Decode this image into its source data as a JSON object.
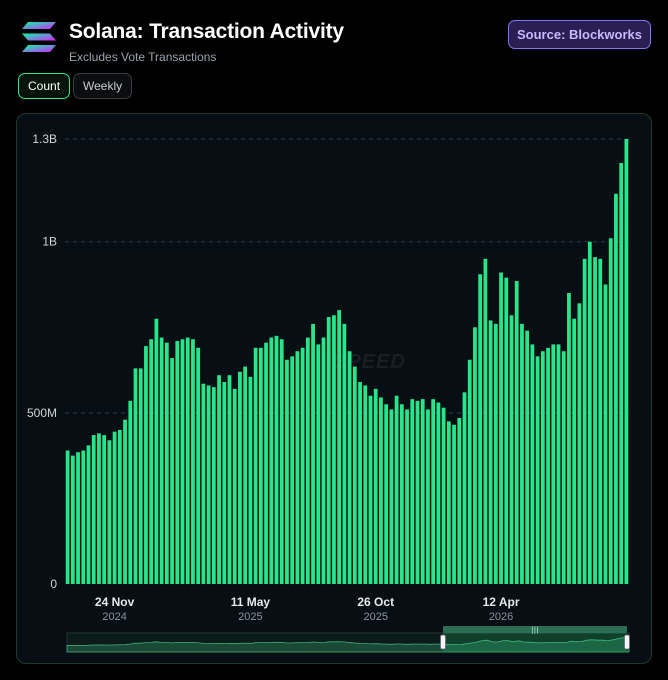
{
  "header": {
    "title": "Solana: Transaction Activity",
    "subtitle": "Excludes Vote Transactions",
    "source_label": "Source: Blockworks"
  },
  "toggles": {
    "count_label": "Count",
    "weekly_label": "Weekly",
    "selected": "Count"
  },
  "watermark": "SPEED",
  "colors": {
    "bar": "#27e68a",
    "accent": "#2ee88c",
    "source_border": "#8b73e6",
    "background": "#000000"
  },
  "chart_data": {
    "type": "bar",
    "title": "Solana: Transaction Activity",
    "subtitle": "Excludes Vote Transactions",
    "xlabel": "",
    "ylabel": "",
    "ylim": [
      0,
      1300000000
    ],
    "yticks": [
      {
        "value": 0,
        "label": "0"
      },
      {
        "value": 500000000,
        "label": "500M"
      },
      {
        "value": 1000000000,
        "label": "1B"
      },
      {
        "value": 1300000000,
        "label": "1.3B"
      }
    ],
    "xticks": [
      {
        "index": 9,
        "label": "24 Nov",
        "sublabel": "2024"
      },
      {
        "index": 35,
        "label": "11 May",
        "sublabel": "2025"
      },
      {
        "index": 59,
        "label": "26 Oct",
        "sublabel": "2025"
      },
      {
        "index": 83,
        "label": "12 Apr",
        "sublabel": "2026"
      }
    ],
    "grid": "horizontal dashed",
    "legend": "none",
    "values": [
      390000000,
      375000000,
      385000000,
      390000000,
      405000000,
      435000000,
      440000000,
      435000000,
      420000000,
      445000000,
      450000000,
      480000000,
      535000000,
      630000000,
      630000000,
      695000000,
      715000000,
      775000000,
      720000000,
      705000000,
      660000000,
      710000000,
      715000000,
      720000000,
      715000000,
      690000000,
      585000000,
      580000000,
      575000000,
      610000000,
      590000000,
      610000000,
      570000000,
      620000000,
      635000000,
      605000000,
      690000000,
      690000000,
      705000000,
      720000000,
      725000000,
      715000000,
      655000000,
      665000000,
      680000000,
      690000000,
      720000000,
      760000000,
      700000000,
      720000000,
      780000000,
      785000000,
      800000000,
      760000000,
      680000000,
      635000000,
      590000000,
      580000000,
      550000000,
      570000000,
      545000000,
      525000000,
      510000000,
      550000000,
      525000000,
      510000000,
      540000000,
      535000000,
      540000000,
      510000000,
      540000000,
      530000000,
      515000000,
      475000000,
      465000000,
      485000000,
      560000000,
      655000000,
      750000000,
      905000000,
      950000000,
      770000000,
      760000000,
      910000000,
      895000000,
      785000000,
      885000000,
      760000000,
      740000000,
      700000000,
      665000000,
      680000000,
      690000000,
      700000000,
      700000000,
      680000000,
      850000000,
      775000000,
      820000000,
      950000000,
      1000000000,
      955000000,
      950000000,
      875000000,
      1010000000,
      1140000000,
      1230000000,
      1300000000
    ]
  }
}
